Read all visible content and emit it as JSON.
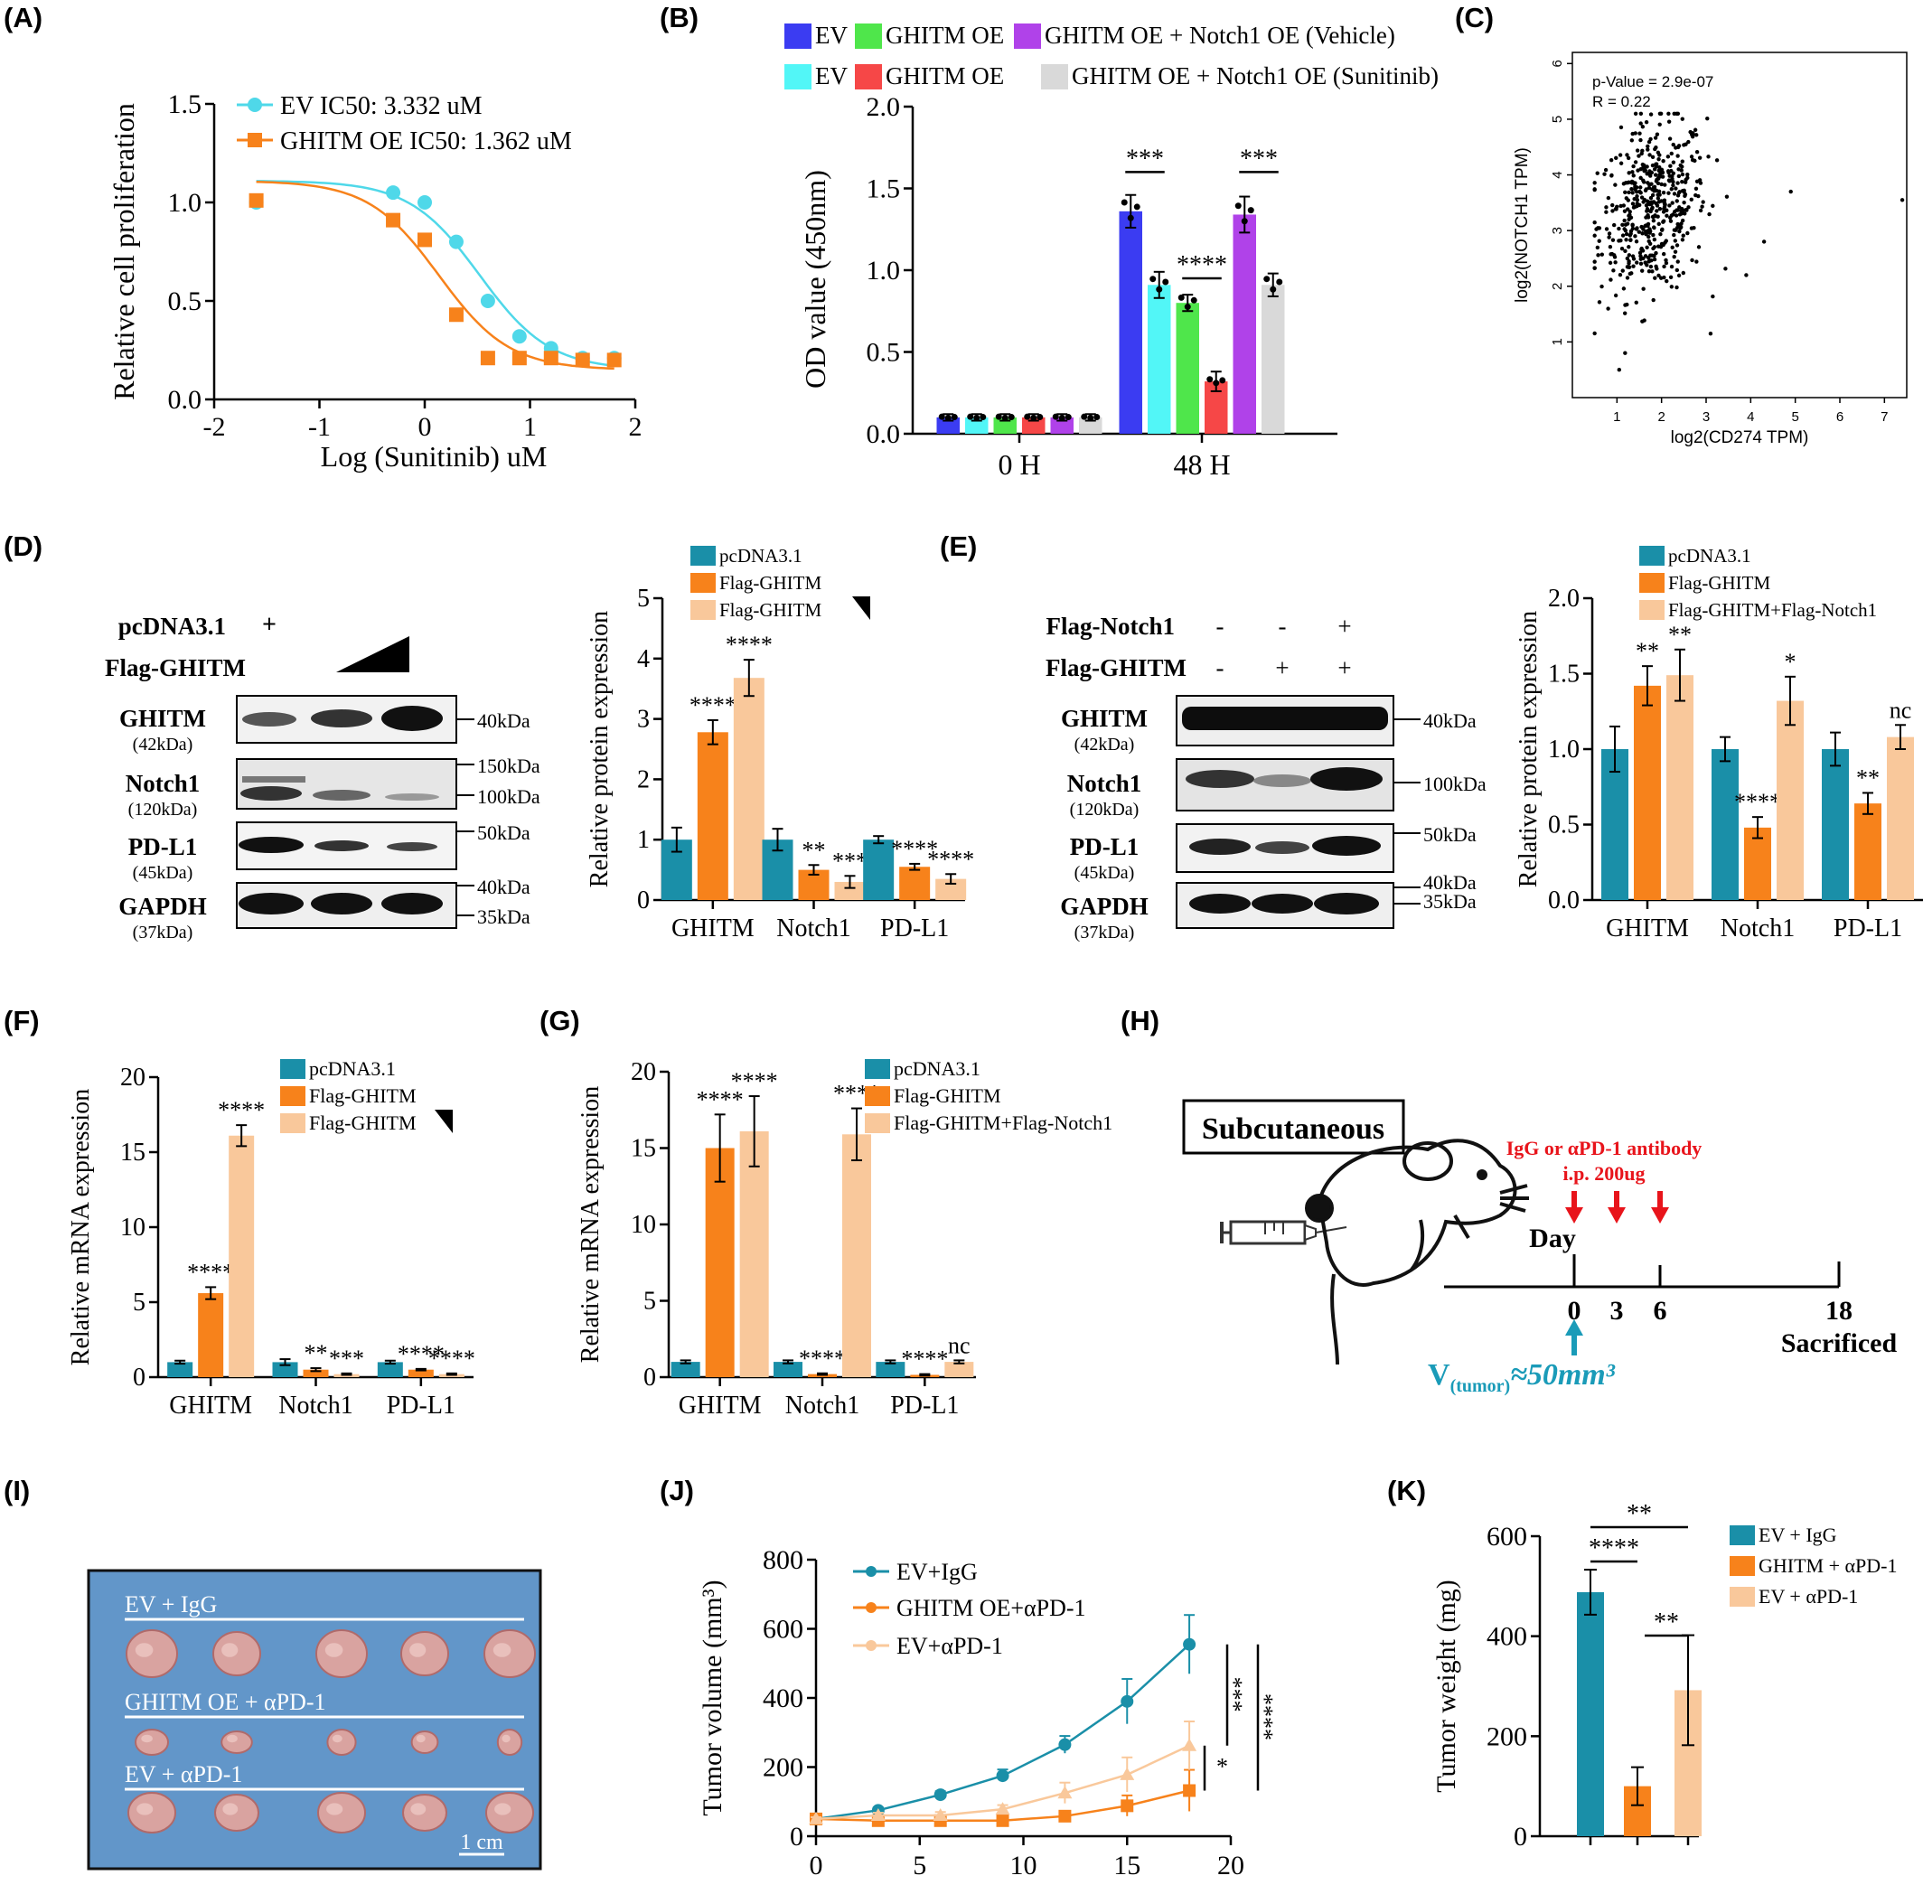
{
  "panels": {
    "A": "(A)",
    "B": "(B)",
    "C": "(C)",
    "D": "(D)",
    "E": "(E)",
    "F": "(F)",
    "G": "(G)",
    "H": "(H)",
    "I": "(I)",
    "J": "(J)",
    "K": "(K)"
  },
  "colors": {
    "teal": "#1a8fa8",
    "orange": "#f7821b",
    "peach": "#f9c89b",
    "ev_cyan": "#4fd8e9",
    "ghitm_orange": "#f7821b",
    "B_blue": "#3b3cf2",
    "B_green": "#4fe64b",
    "B_purple": "#b042e9",
    "B_cyan": "#52f6f7",
    "B_red": "#f64747",
    "B_grey": "#d9d9d9",
    "annotation_red": "#e8141b",
    "annotation_teal": "#1a9bb8"
  },
  "chart_data": [
    {
      "id": "A",
      "type": "scatter",
      "xlabel": "Log (Sunitinib) uM",
      "ylabel": "Relative cell proliferation",
      "xlim": [
        -2,
        2
      ],
      "ylim": [
        0,
        1.5
      ],
      "x_ticks": [
        "-2",
        "-1",
        "0",
        "1",
        "2"
      ],
      "y_ticks": [
        "0.0",
        "0.5",
        "1.0",
        "1.5"
      ],
      "legend": [
        "EV    IC50: 3.332 uM",
        "GHITM OE    IC50: 1.362 uM"
      ],
      "series": [
        {
          "name": "EV",
          "x": [
            -1.6,
            -0.3,
            0,
            0.3,
            0.6,
            0.9,
            1.2,
            1.5,
            1.8
          ],
          "y": [
            1.0,
            1.05,
            1.0,
            0.8,
            0.5,
            0.32,
            0.26,
            0.21,
            0.21
          ],
          "ic50_log": 0.5227
        },
        {
          "name": "GHITM OE",
          "x": [
            -1.6,
            -0.3,
            0,
            0.3,
            0.6,
            0.9,
            1.2,
            1.5,
            1.8
          ],
          "y": [
            1.01,
            0.91,
            0.81,
            0.43,
            0.21,
            0.21,
            0.21,
            0.2,
            0.2
          ],
          "ic50_log": 0.1341
        }
      ]
    },
    {
      "id": "B",
      "type": "bar",
      "ylabel": "OD value (450nm)",
      "ylim": [
        0,
        2.0
      ],
      "y_ticks": [
        "0.0",
        "0.5",
        "1.0",
        "1.5",
        "2.0"
      ],
      "categories": [
        "0 H",
        "48 H"
      ],
      "legend_rows": [
        [
          "EV",
          "GHITM OE",
          "GHITM OE + Notch1 OE (Vehicle)"
        ],
        [
          "EV",
          "GHITM OE",
          "GHITM OE + Notch1 OE (Sunitinib)"
        ]
      ],
      "series": [
        {
          "values": [
            0.1,
            1.36
          ],
          "err": [
            0.02,
            0.1
          ]
        },
        {
          "values": [
            0.1,
            0.91
          ],
          "err": [
            0.02,
            0.08
          ]
        },
        {
          "values": [
            0.1,
            0.8
          ],
          "err": [
            0.02,
            0.05
          ]
        },
        {
          "values": [
            0.1,
            0.32
          ],
          "err": [
            0.02,
            0.06
          ]
        },
        {
          "values": [
            0.1,
            1.34
          ],
          "err": [
            0.02,
            0.11
          ]
        },
        {
          "values": [
            0.1,
            0.91
          ],
          "err": [
            0.02,
            0.07
          ]
        }
      ],
      "significance": [
        "***",
        "****",
        "***"
      ]
    },
    {
      "id": "C",
      "type": "scatter",
      "xlabel": "log2(CD274 TPM)",
      "ylabel": "log2(NOTCH1 TPM)",
      "xlim": [
        0,
        7.5
      ],
      "ylim": [
        0,
        6
      ],
      "x_ticks": [
        "1",
        "2",
        "3",
        "4",
        "5",
        "6",
        "7"
      ],
      "y_ticks": [
        "1",
        "2",
        "3",
        "4",
        "5",
        "6"
      ],
      "annotations": [
        "p-Value = 2.9e-07",
        "R = 0.22"
      ],
      "n_points": 500,
      "center": [
        1.8,
        3.4
      ],
      "spread": [
        0.6,
        0.75
      ],
      "outliers": [
        [
          4.9,
          3.7
        ],
        [
          7.4,
          3.55
        ],
        [
          3.1,
          1.15
        ],
        [
          1.05,
          0.5
        ],
        [
          4.3,
          2.8
        ],
        [
          3.9,
          2.2
        ]
      ]
    },
    {
      "id": "D_bar",
      "type": "bar",
      "ylabel": "Relative protein expression",
      "ylim": [
        0,
        5
      ],
      "y_ticks": [
        "0",
        "1",
        "2",
        "3",
        "4",
        "5"
      ],
      "categories": [
        "GHITM",
        "Notch1",
        "PD-L1"
      ],
      "legend": [
        "pcDNA3.1",
        "Flag-GHITM",
        "Flag-GHITM"
      ],
      "series": [
        {
          "name": "pcDNA3.1",
          "values": [
            1.0,
            1.0,
            1.0
          ],
          "err": [
            0.2,
            0.18,
            0.06
          ]
        },
        {
          "name": "Flag-GHITM",
          "values": [
            2.78,
            0.5,
            0.55
          ],
          "err": [
            0.2,
            0.08,
            0.05
          ]
        },
        {
          "name": "Flag-GHITM",
          "values": [
            3.68,
            0.3,
            0.35
          ],
          "err": [
            0.3,
            0.1,
            0.08
          ]
        }
      ],
      "significance": [
        [
          "",
          "****",
          "****"
        ],
        [
          "",
          "**",
          "***"
        ],
        [
          "",
          "****",
          "****"
        ]
      ]
    },
    {
      "id": "E_bar",
      "type": "bar",
      "ylabel": "Relative protein expression",
      "ylim": [
        0,
        2.0
      ],
      "y_ticks": [
        "0.0",
        "0.5",
        "1.0",
        "1.5",
        "2.0"
      ],
      "categories": [
        "GHITM",
        "Notch1",
        "PD-L1"
      ],
      "legend": [
        "pcDNA3.1",
        "Flag-GHITM",
        "Flag-GHITM+Flag-Notch1"
      ],
      "series": [
        {
          "name": "pcDNA3.1",
          "values": [
            1.0,
            1.0,
            1.0
          ],
          "err": [
            0.15,
            0.08,
            0.11
          ]
        },
        {
          "name": "Flag-GHITM",
          "values": [
            1.42,
            0.48,
            0.64
          ],
          "err": [
            0.13,
            0.07,
            0.07
          ]
        },
        {
          "name": "Flag-GHITM+Flag-Notch1",
          "values": [
            1.49,
            1.32,
            1.08
          ],
          "err": [
            0.17,
            0.16,
            0.08
          ]
        }
      ],
      "significance": [
        [
          "",
          "**",
          "**"
        ],
        [
          "",
          "****",
          "*"
        ],
        [
          "",
          "**",
          "nc"
        ]
      ]
    },
    {
      "id": "F",
      "type": "bar",
      "ylabel": "Relative mRNA expression",
      "ylim": [
        0,
        20
      ],
      "y_ticks": [
        "0",
        "5",
        "10",
        "15",
        "20"
      ],
      "categories": [
        "GHITM",
        "Notch1",
        "PD-L1"
      ],
      "legend": [
        "pcDNA3.1",
        "Flag-GHITM",
        "Flag-GHITM"
      ],
      "series": [
        {
          "name": "pcDNA3.1",
          "values": [
            1.0,
            1.0,
            1.0
          ],
          "err": [
            0.1,
            0.2,
            0.1
          ]
        },
        {
          "name": "Flag-GHITM",
          "values": [
            5.6,
            0.5,
            0.5
          ],
          "err": [
            0.4,
            0.1,
            0.05
          ]
        },
        {
          "name": "Flag-GHITM",
          "values": [
            16.1,
            0.2,
            0.2
          ],
          "err": [
            0.7,
            0.05,
            0.05
          ]
        }
      ],
      "significance": [
        [
          "",
          "****",
          "****"
        ],
        [
          "",
          "**",
          "***"
        ],
        [
          "",
          "****",
          "****"
        ]
      ]
    },
    {
      "id": "G",
      "type": "bar",
      "ylabel": "Relative mRNA expression",
      "ylim": [
        0,
        20
      ],
      "y_ticks": [
        "0",
        "5",
        "10",
        "15",
        "20"
      ],
      "categories": [
        "GHITM",
        "Notch1",
        "PD-L1"
      ],
      "legend": [
        "pcDNA3.1",
        "Flag-GHITM",
        "Flag-GHITM+Flag-Notch1"
      ],
      "series": [
        {
          "name": "pcDNA3.1",
          "values": [
            1.0,
            1.0,
            1.0
          ],
          "err": [
            0.1,
            0.1,
            0.1
          ]
        },
        {
          "name": "Flag-GHITM",
          "values": [
            15.0,
            0.2,
            0.15
          ],
          "err": [
            2.2,
            0.05,
            0.05
          ]
        },
        {
          "name": "Flag-GHITM+Flag-Notch1",
          "values": [
            16.1,
            15.9,
            1.0
          ],
          "err": [
            2.3,
            1.7,
            0.1
          ]
        }
      ],
      "significance": [
        [
          "",
          "****",
          "****"
        ],
        [
          "",
          "****",
          "****"
        ],
        [
          "",
          "****",
          "nc"
        ]
      ]
    },
    {
      "id": "J",
      "type": "line",
      "xlim": [
        0,
        20
      ],
      "ylim": [
        0,
        800
      ],
      "x_ticks": [
        "0",
        "5",
        "10",
        "15",
        "20"
      ],
      "y_ticks": [
        "0",
        "200",
        "400",
        "600",
        "800"
      ],
      "ylabel": "Tumor volume (mm³)",
      "x": [
        0,
        3,
        6,
        9,
        12,
        15,
        18
      ],
      "series": [
        {
          "name": "EV+IgG",
          "values": [
            50,
            75,
            120,
            175,
            265,
            390,
            555
          ],
          "err": [
            5,
            8,
            10,
            18,
            25,
            65,
            85
          ]
        },
        {
          "name": "GHITM OE+αPD-1",
          "values": [
            50,
            45,
            45,
            45,
            58,
            88,
            132
          ],
          "err": [
            5,
            5,
            8,
            8,
            12,
            30,
            60
          ]
        },
        {
          "name": "EV+αPD-1",
          "values": [
            50,
            60,
            60,
            78,
            125,
            178,
            262
          ],
          "err": [
            5,
            8,
            10,
            12,
            30,
            50,
            70
          ]
        }
      ],
      "significance": [
        "***",
        "****",
        "*"
      ]
    },
    {
      "id": "K",
      "type": "bar",
      "ylabel": "Tumor weight (mg)",
      "ylim": [
        0,
        600
      ],
      "y_ticks": [
        "0",
        "200",
        "400",
        "600"
      ],
      "categories": [
        "EV + IgG",
        "GHITM + αPD-1",
        "EV + αPD-1"
      ],
      "values": [
        488,
        100,
        292
      ],
      "err": [
        45,
        38,
        110
      ],
      "significance": [
        "****",
        "**",
        "**"
      ]
    }
  ],
  "blot_D": {
    "treatments": [
      "pcDNA3.1",
      "Flag-GHITM"
    ],
    "plus": "+",
    "bands": [
      {
        "label": "GHITM",
        "sub": "(42kDa)"
      },
      {
        "label": "Notch1",
        "sub": "(120kDa)"
      },
      {
        "label": "PD-L1",
        "sub": "(45kDa)"
      },
      {
        "label": "GAPDH",
        "sub": "(37kDa)"
      }
    ],
    "markers": [
      "40kDa",
      "150kDa",
      "100kDa",
      "50kDa",
      "40kDa",
      "35kDa"
    ]
  },
  "blot_E": {
    "rows": [
      {
        "label": "Flag-Notch1",
        "signs": [
          "-",
          "-",
          "+"
        ]
      },
      {
        "label": "Flag-GHITM",
        "signs": [
          "-",
          "+",
          "+"
        ]
      }
    ],
    "bands": [
      {
        "label": "GHITM",
        "sub": "(42kDa)"
      },
      {
        "label": "Notch1",
        "sub": "(120kDa)"
      },
      {
        "label": "PD-L1",
        "sub": "(45kDa)"
      },
      {
        "label": "GAPDH",
        "sub": "(37kDa)"
      }
    ],
    "markers": [
      "40kDa",
      "100kDa",
      "50kDa",
      "40kDa",
      "35kDa"
    ]
  },
  "schematic_H": {
    "box": "Subcutaneous",
    "treatment_line1": "IgG or αPD-1 antibody",
    "treatment_line2": "i.p. 200ug",
    "day_label": "Day",
    "days": [
      "0",
      "3",
      "6",
      "18"
    ],
    "end_label": "Sacrificed",
    "volume_prefix": "V",
    "volume_sub": "(tumor)",
    "volume_value": "≈50mm³"
  },
  "photo_I": {
    "rows": [
      "EV + IgG",
      "GHITM OE + αPD-1",
      "EV + αPD-1"
    ],
    "scale": "1 cm"
  }
}
